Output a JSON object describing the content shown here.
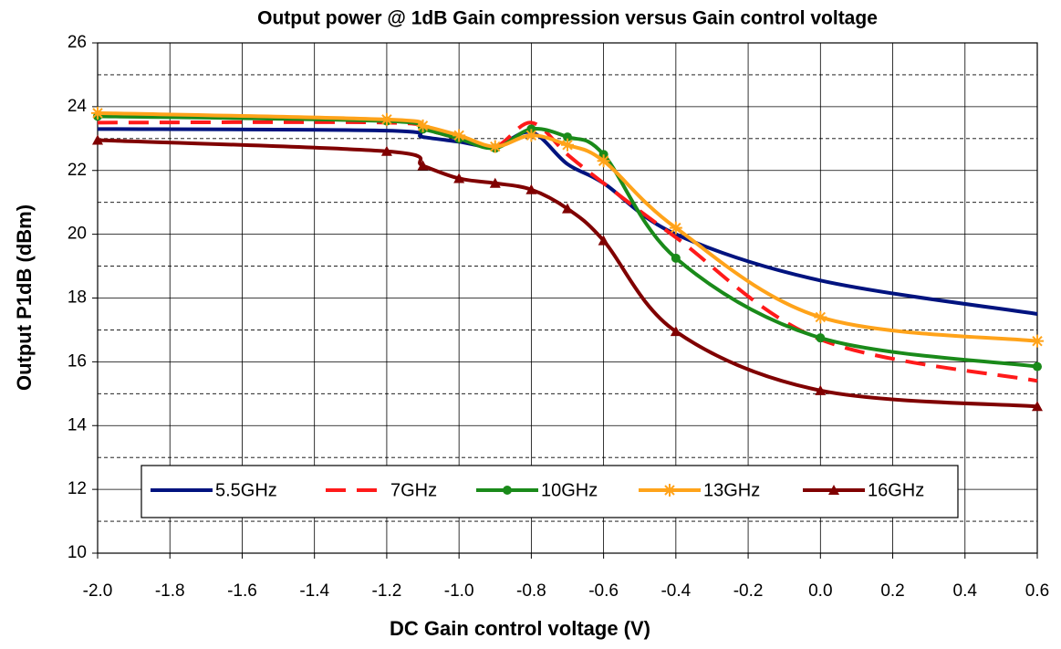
{
  "chart_data": {
    "type": "line",
    "title": "Output power @ 1dB Gain compression versus Gain control voltage",
    "xlabel": "DC Gain control voltage (V)",
    "ylabel": "Output P1dB (dBm)",
    "x": [
      -2.0,
      -1.2,
      -1.1,
      -1.0,
      -0.9,
      -0.8,
      -0.7,
      -0.6,
      -0.4,
      0.0,
      0.6
    ],
    "series": [
      {
        "name": "5.5GHz",
        "color": "#00137f",
        "style": "solid",
        "marker": "none",
        "values": [
          23.3,
          23.25,
          23.05,
          22.9,
          22.75,
          23.2,
          22.2,
          21.6,
          20.0,
          18.55,
          17.5
        ]
      },
      {
        "name": "7GHz",
        "color": "#ff1a1a",
        "style": "dashed",
        "marker": "none",
        "values": [
          23.5,
          23.5,
          23.3,
          23.0,
          22.75,
          23.5,
          22.5,
          21.6,
          19.9,
          16.7,
          15.4
        ]
      },
      {
        "name": "10GHz",
        "color": "#1a8a1a",
        "style": "solid",
        "marker": "circle",
        "values": [
          23.7,
          23.55,
          23.3,
          23.0,
          22.7,
          23.3,
          23.05,
          22.5,
          19.25,
          16.75,
          15.85
        ]
      },
      {
        "name": "13GHz",
        "color": "#ffa31a",
        "style": "solid",
        "marker": "star",
        "values": [
          23.8,
          23.6,
          23.4,
          23.1,
          22.75,
          23.1,
          22.8,
          22.3,
          20.2,
          17.4,
          16.65
        ]
      },
      {
        "name": "16GHz",
        "color": "#800000",
        "style": "solid",
        "marker": "triangle",
        "values": [
          22.95,
          22.6,
          22.15,
          21.75,
          21.6,
          21.4,
          20.8,
          19.8,
          16.95,
          15.1,
          14.6
        ]
      }
    ],
    "xlim": [
      -2.0,
      0.6
    ],
    "xticks": [
      {
        "value": -2.0,
        "label": "-2.0"
      },
      -1.8,
      -1.6,
      -1.4,
      -1.2,
      {
        "value": -1.0,
        "label": "-1.0"
      },
      -0.8,
      -0.6,
      -0.4,
      -0.2,
      {
        "value": 0.0,
        "label": "0.0"
      },
      0.2,
      0.4,
      0.6
    ],
    "ylim": [
      10,
      26
    ],
    "yticks": [
      10,
      12,
      14,
      16,
      18,
      20,
      22,
      24,
      26
    ],
    "minor_yticks": [
      11,
      13,
      15,
      17,
      19,
      21,
      23,
      25
    ],
    "grid": true,
    "legend": "bottom"
  }
}
